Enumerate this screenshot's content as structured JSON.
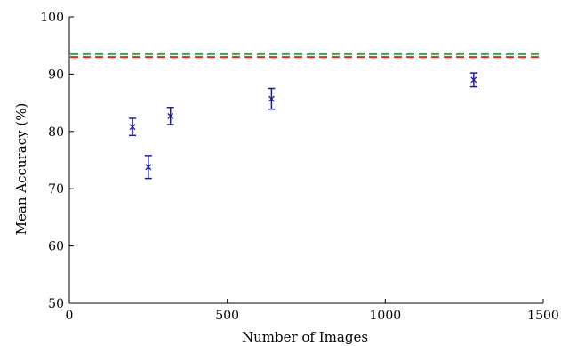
{
  "chart_data": {
    "type": "scatter",
    "title": "",
    "xlabel": "Number of Images",
    "ylabel": "Mean Accuracy (%)",
    "xlim": [
      0,
      1500
    ],
    "ylim": [
      50,
      100
    ],
    "xticks": [
      0,
      500,
      1000,
      1500
    ],
    "yticks": [
      50,
      60,
      70,
      80,
      90,
      100
    ],
    "grid": false,
    "legend": "none",
    "series": [
      {
        "type": "scatter-errorbar",
        "color": "#1a1aa8",
        "marker": "x",
        "points": [
          {
            "x": 200,
            "y": 80.8,
            "err": 1.5
          },
          {
            "x": 250,
            "y": 73.8,
            "err": 2.0
          },
          {
            "x": 320,
            "y": 82.7,
            "err": 1.5
          },
          {
            "x": 640,
            "y": 85.7,
            "err": 1.8
          },
          {
            "x": 1280,
            "y": 89.0,
            "err": 1.2
          }
        ]
      },
      {
        "type": "hline",
        "color": "#22bb22",
        "dash": "dashed",
        "y": 93.5
      },
      {
        "type": "hline",
        "color": "#ee2222",
        "dash": "dashed",
        "y": 93.0
      }
    ]
  }
}
